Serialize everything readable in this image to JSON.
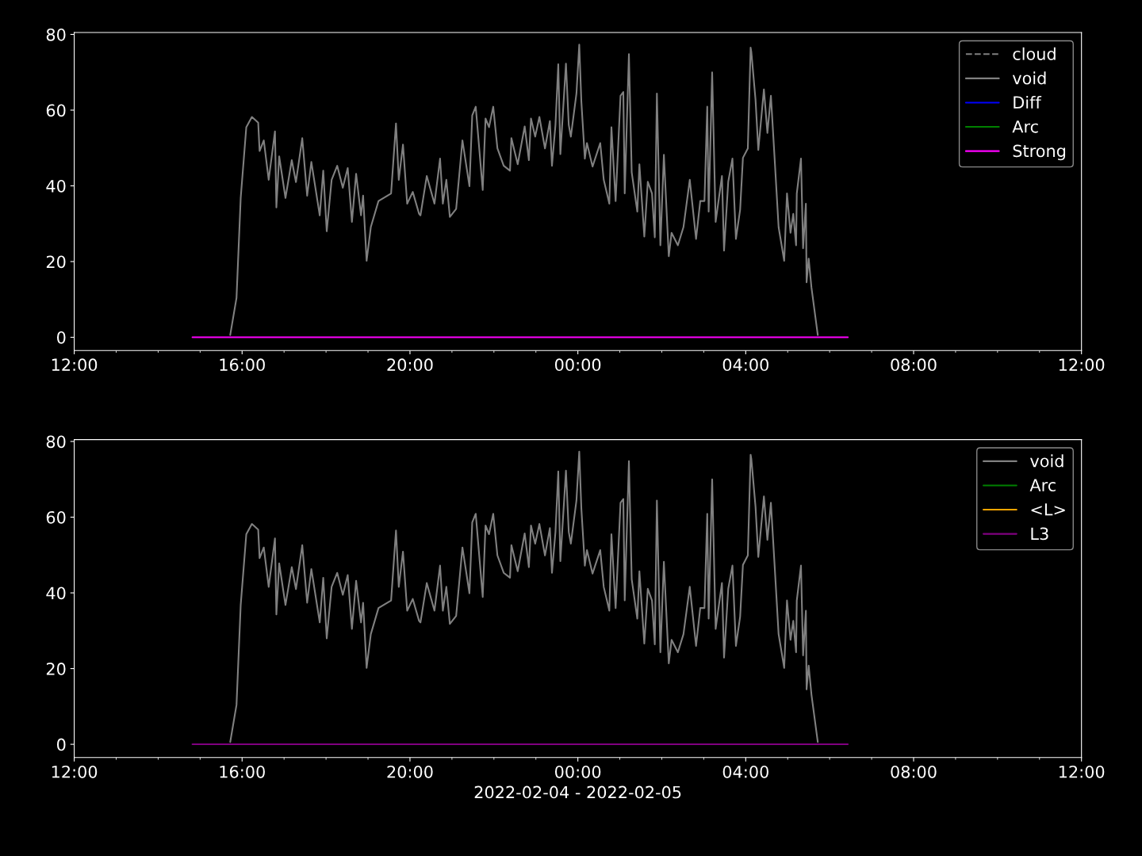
{
  "chart_data": [
    {
      "type": "line",
      "xlim": [
        "2022-02-04T12:00",
        "2022-02-05T12:00"
      ],
      "xticks": [
        {
          "value": "2022-02-04T12:00",
          "label": "12:00"
        },
        {
          "value": "2022-02-04T16:00",
          "label": "16:00"
        },
        {
          "value": "2022-02-04T20:00",
          "label": "20:00"
        },
        {
          "value": "2022-02-05T00:00",
          "label": "00:00"
        },
        {
          "value": "2022-02-05T04:00",
          "label": "04:00"
        },
        {
          "value": "2022-02-05T08:00",
          "label": "08:00"
        },
        {
          "value": "2022-02-05T12:00",
          "label": "12:00"
        }
      ],
      "ylim": [
        -3.5,
        80.5
      ],
      "yticks": [
        0,
        20,
        40,
        60,
        80
      ],
      "grid": false,
      "legend": "top right",
      "series": [
        {
          "name": "cloud",
          "color": "#808080",
          "line_style": "dashed"
        },
        {
          "name": "void",
          "color": "#808080",
          "line_style": "solid",
          "x": [
            "2022-02-04T15:43",
            "2022-02-04T15:52",
            "2022-02-04T15:58",
            "2022-02-04T16:06",
            "2022-02-04T16:14",
            "2022-02-04T16:23",
            "2022-02-04T16:25",
            "2022-02-04T16:31",
            "2022-02-04T16:38",
            "2022-02-04T16:47",
            "2022-02-04T16:49",
            "2022-02-04T16:53",
            "2022-02-04T17:02",
            "2022-02-04T17:11",
            "2022-02-04T17:17",
            "2022-02-04T17:26",
            "2022-02-04T17:33",
            "2022-02-04T17:39",
            "2022-02-04T17:51",
            "2022-02-04T17:56",
            "2022-02-04T18:01",
            "2022-02-04T18:08",
            "2022-02-04T18:16",
            "2022-02-04T18:24",
            "2022-02-04T18:31",
            "2022-02-04T18:37",
            "2022-02-04T18:43",
            "2022-02-04T18:50",
            "2022-02-04T18:53",
            "2022-02-04T18:58",
            "2022-02-04T19:04",
            "2022-02-04T19:15",
            "2022-02-04T19:33",
            "2022-02-04T19:40",
            "2022-02-04T19:44",
            "2022-02-04T19:50",
            "2022-02-04T19:56",
            "2022-02-04T20:04",
            "2022-02-04T20:13",
            "2022-02-04T20:15",
            "2022-02-04T20:24",
            "2022-02-04T20:35",
            "2022-02-04T20:43",
            "2022-02-04T20:47",
            "2022-02-04T20:52",
            "2022-02-04T20:57",
            "2022-02-04T21:06",
            "2022-02-04T21:15",
            "2022-02-04T21:25",
            "2022-02-04T21:29",
            "2022-02-04T21:34",
            "2022-02-04T21:44",
            "2022-02-04T21:48",
            "2022-02-04T21:53",
            "2022-02-04T21:59",
            "2022-02-04T22:05",
            "2022-02-04T22:14",
            "2022-02-04T22:23",
            "2022-02-04T22:25",
            "2022-02-04T22:34",
            "2022-02-04T22:44",
            "2022-02-04T22:50",
            "2022-02-04T22:53",
            "2022-02-04T22:59",
            "2022-02-04T23:05",
            "2022-02-04T23:13",
            "2022-02-04T23:20",
            "2022-02-04T23:23",
            "2022-02-04T23:28",
            "2022-02-04T23:32",
            "2022-02-04T23:35",
            "2022-02-04T23:43",
            "2022-02-04T23:47",
            "2022-02-04T23:50",
            "2022-02-04T23:58",
            "2022-02-05T00:02",
            "2022-02-05T00:05",
            "2022-02-05T00:10",
            "2022-02-05T00:13",
            "2022-02-05T00:21",
            "2022-02-05T00:32",
            "2022-02-05T00:37",
            "2022-02-05T00:45",
            "2022-02-05T00:48",
            "2022-02-05T00:54",
            "2022-02-05T01:01",
            "2022-02-05T01:05",
            "2022-02-05T01:07",
            "2022-02-05T01:13",
            "2022-02-05T01:17",
            "2022-02-05T01:25",
            "2022-02-05T01:28",
            "2022-02-05T01:35",
            "2022-02-05T01:40",
            "2022-02-05T01:46",
            "2022-02-05T01:50",
            "2022-02-05T01:53",
            "2022-02-05T01:58",
            "2022-02-05T02:03",
            "2022-02-05T02:10",
            "2022-02-05T02:14",
            "2022-02-05T02:23",
            "2022-02-05T02:31",
            "2022-02-05T02:40",
            "2022-02-05T02:49",
            "2022-02-05T02:55",
            "2022-02-05T03:01",
            "2022-02-05T03:05",
            "2022-02-05T03:07",
            "2022-02-05T03:12",
            "2022-02-05T03:17",
            "2022-02-05T03:26",
            "2022-02-05T03:29",
            "2022-02-05T03:35",
            "2022-02-05T03:41",
            "2022-02-05T03:46",
            "2022-02-05T03:52",
            "2022-02-05T03:56",
            "2022-02-05T04:03",
            "2022-02-05T04:07",
            "2022-02-05T04:08",
            "2022-02-05T04:14",
            "2022-02-05T04:18",
            "2022-02-05T04:26",
            "2022-02-05T04:31",
            "2022-02-05T04:36",
            "2022-02-05T04:41",
            "2022-02-05T04:47",
            "2022-02-05T04:55",
            "2022-02-05T04:59",
            "2022-02-05T05:04",
            "2022-02-05T05:08",
            "2022-02-05T05:12",
            "2022-02-05T05:13",
            "2022-02-05T05:19",
            "2022-02-05T05:22",
            "2022-02-05T05:26",
            "2022-02-05T05:27",
            "2022-02-05T05:30",
            "2022-02-05T05:34",
            "2022-02-05T05:43"
          ],
          "values": [
            0.6,
            10.4,
            36.8,
            55.5,
            58.2,
            56.7,
            49.2,
            52,
            41.6,
            54.4,
            34.3,
            47.8,
            36.8,
            46.8,
            41,
            52.6,
            37.4,
            46.3,
            32.2,
            44,
            28,
            41.6,
            45.3,
            39.5,
            44.7,
            30.5,
            43.2,
            32.2,
            37.4,
            20.2,
            29.1,
            36,
            38,
            56.5,
            41.6,
            50.9,
            35.3,
            38.4,
            32.6,
            32.2,
            42.6,
            35.3,
            47.2,
            35.3,
            41.6,
            31.8,
            33.9,
            52,
            39.9,
            58.6,
            60.9,
            38.9,
            57.8,
            55.5,
            60.9,
            49.9,
            45.3,
            44,
            52.6,
            45.7,
            55.7,
            46.8,
            57.8,
            53,
            58.2,
            49.9,
            57.1,
            45.3,
            56.1,
            72.1,
            48.4,
            72.3,
            56.1,
            53,
            64.4,
            77.3,
            62.3,
            47.2,
            51.3,
            45.1,
            51.3,
            41.6,
            35.3,
            55.5,
            36,
            63.8,
            64.8,
            38,
            74.8,
            43.6,
            33.2,
            45.7,
            26.6,
            41.1,
            38,
            26.4,
            64.4,
            24.3,
            48.2,
            21.4,
            27.6,
            24.3,
            29.1,
            41.6,
            26,
            36,
            36,
            60.9,
            33.2,
            70,
            30.5,
            42.6,
            22.9,
            41.1,
            47.2,
            26,
            33.7,
            47.4,
            49.9,
            76.5,
            75.4,
            62.8,
            49.5,
            65.5,
            54,
            63.8,
            48.2,
            29.1,
            20.2,
            38,
            27.6,
            32.6,
            24.3,
            38,
            47.2,
            23.5,
            35.3,
            14.5,
            20.8,
            13.1,
            0.6
          ]
        },
        {
          "name": "Diff",
          "color": "#0000ff",
          "line_style": "solid"
        },
        {
          "name": "Arc",
          "color": "#008000",
          "line_style": "solid"
        },
        {
          "name": "Strong",
          "color": "#ff00ff",
          "line_style": "solid",
          "x": [
            "2022-02-04T14:49",
            "2022-02-05T06:26"
          ],
          "values": [
            0,
            0
          ]
        }
      ]
    },
    {
      "type": "line",
      "xlabel": "2022-02-04 - 2022-02-05",
      "xlim": [
        "2022-02-04T12:00",
        "2022-02-05T12:00"
      ],
      "xticks": [
        {
          "value": "2022-02-04T12:00",
          "label": "12:00"
        },
        {
          "value": "2022-02-04T16:00",
          "label": "16:00"
        },
        {
          "value": "2022-02-04T20:00",
          "label": "20:00"
        },
        {
          "value": "2022-02-05T00:00",
          "label": "00:00"
        },
        {
          "value": "2022-02-05T04:00",
          "label": "04:00"
        },
        {
          "value": "2022-02-05T08:00",
          "label": "08:00"
        },
        {
          "value": "2022-02-05T12:00",
          "label": "12:00"
        }
      ],
      "ylim": [
        -3.5,
        80.5
      ],
      "yticks": [
        0,
        20,
        40,
        60,
        80
      ],
      "grid": false,
      "legend": "top right",
      "series": [
        {
          "name": "void",
          "color": "#808080",
          "line_style": "solid",
          "x": [
            "2022-02-04T15:43",
            "2022-02-04T15:52",
            "2022-02-04T15:58",
            "2022-02-04T16:06",
            "2022-02-04T16:14",
            "2022-02-04T16:23",
            "2022-02-04T16:25",
            "2022-02-04T16:31",
            "2022-02-04T16:38",
            "2022-02-04T16:47",
            "2022-02-04T16:49",
            "2022-02-04T16:53",
            "2022-02-04T17:02",
            "2022-02-04T17:11",
            "2022-02-04T17:17",
            "2022-02-04T17:26",
            "2022-02-04T17:33",
            "2022-02-04T17:39",
            "2022-02-04T17:51",
            "2022-02-04T17:56",
            "2022-02-04T18:01",
            "2022-02-04T18:08",
            "2022-02-04T18:16",
            "2022-02-04T18:24",
            "2022-02-04T18:31",
            "2022-02-04T18:37",
            "2022-02-04T18:43",
            "2022-02-04T18:50",
            "2022-02-04T18:53",
            "2022-02-04T18:58",
            "2022-02-04T19:04",
            "2022-02-04T19:15",
            "2022-02-04T19:33",
            "2022-02-04T19:40",
            "2022-02-04T19:44",
            "2022-02-04T19:50",
            "2022-02-04T19:56",
            "2022-02-04T20:04",
            "2022-02-04T20:13",
            "2022-02-04T20:15",
            "2022-02-04T20:24",
            "2022-02-04T20:35",
            "2022-02-04T20:43",
            "2022-02-04T20:47",
            "2022-02-04T20:52",
            "2022-02-04T20:57",
            "2022-02-04T21:06",
            "2022-02-04T21:15",
            "2022-02-04T21:25",
            "2022-02-04T21:29",
            "2022-02-04T21:34",
            "2022-02-04T21:44",
            "2022-02-04T21:48",
            "2022-02-04T21:53",
            "2022-02-04T21:59",
            "2022-02-04T22:05",
            "2022-02-04T22:14",
            "2022-02-04T22:23",
            "2022-02-04T22:25",
            "2022-02-04T22:34",
            "2022-02-04T22:44",
            "2022-02-04T22:50",
            "2022-02-04T22:53",
            "2022-02-04T22:59",
            "2022-02-04T23:05",
            "2022-02-04T23:13",
            "2022-02-04T23:20",
            "2022-02-04T23:23",
            "2022-02-04T23:28",
            "2022-02-04T23:32",
            "2022-02-04T23:35",
            "2022-02-04T23:43",
            "2022-02-04T23:47",
            "2022-02-04T23:50",
            "2022-02-04T23:58",
            "2022-02-05T00:02",
            "2022-02-05T00:05",
            "2022-02-05T00:10",
            "2022-02-05T00:13",
            "2022-02-05T00:21",
            "2022-02-05T00:32",
            "2022-02-05T00:37",
            "2022-02-05T00:45",
            "2022-02-05T00:48",
            "2022-02-05T00:54",
            "2022-02-05T01:01",
            "2022-02-05T01:05",
            "2022-02-05T01:07",
            "2022-02-05T01:13",
            "2022-02-05T01:17",
            "2022-02-05T01:25",
            "2022-02-05T01:28",
            "2022-02-05T01:35",
            "2022-02-05T01:40",
            "2022-02-05T01:46",
            "2022-02-05T01:50",
            "2022-02-05T01:53",
            "2022-02-05T01:58",
            "2022-02-05T02:03",
            "2022-02-05T02:10",
            "2022-02-05T02:14",
            "2022-02-05T02:23",
            "2022-02-05T02:31",
            "2022-02-05T02:40",
            "2022-02-05T02:49",
            "2022-02-05T02:55",
            "2022-02-05T03:01",
            "2022-02-05T03:05",
            "2022-02-05T03:07",
            "2022-02-05T03:12",
            "2022-02-05T03:17",
            "2022-02-05T03:26",
            "2022-02-05T03:29",
            "2022-02-05T03:35",
            "2022-02-05T03:41",
            "2022-02-05T03:46",
            "2022-02-05T03:52",
            "2022-02-05T03:56",
            "2022-02-05T04:03",
            "2022-02-05T04:07",
            "2022-02-05T04:08",
            "2022-02-05T04:14",
            "2022-02-05T04:18",
            "2022-02-05T04:26",
            "2022-02-05T04:31",
            "2022-02-05T04:36",
            "2022-02-05T04:41",
            "2022-02-05T04:47",
            "2022-02-05T04:55",
            "2022-02-05T04:59",
            "2022-02-05T05:04",
            "2022-02-05T05:08",
            "2022-02-05T05:12",
            "2022-02-05T05:13",
            "2022-02-05T05:19",
            "2022-02-05T05:22",
            "2022-02-05T05:26",
            "2022-02-05T05:27",
            "2022-02-05T05:30",
            "2022-02-05T05:34",
            "2022-02-05T05:43"
          ],
          "values": [
            0.6,
            10.4,
            36.8,
            55.5,
            58.2,
            56.7,
            49.2,
            52,
            41.6,
            54.4,
            34.3,
            47.8,
            36.8,
            46.8,
            41,
            52.6,
            37.4,
            46.3,
            32.2,
            44,
            28,
            41.6,
            45.3,
            39.5,
            44.7,
            30.5,
            43.2,
            32.2,
            37.4,
            20.2,
            29.1,
            36,
            38,
            56.5,
            41.6,
            50.9,
            35.3,
            38.4,
            32.6,
            32.2,
            42.6,
            35.3,
            47.2,
            35.3,
            41.6,
            31.8,
            33.9,
            52,
            39.9,
            58.6,
            60.9,
            38.9,
            57.8,
            55.5,
            60.9,
            49.9,
            45.3,
            44,
            52.6,
            45.7,
            55.7,
            46.8,
            57.8,
            53,
            58.2,
            49.9,
            57.1,
            45.3,
            56.1,
            72.1,
            48.4,
            72.3,
            56.1,
            53,
            64.4,
            77.3,
            62.3,
            47.2,
            51.3,
            45.1,
            51.3,
            41.6,
            35.3,
            55.5,
            36,
            63.8,
            64.8,
            38,
            74.8,
            43.6,
            33.2,
            45.7,
            26.6,
            41.1,
            38,
            26.4,
            64.4,
            24.3,
            48.2,
            21.4,
            27.6,
            24.3,
            29.1,
            41.6,
            26,
            36,
            36,
            60.9,
            33.2,
            70,
            30.5,
            42.6,
            22.9,
            41.1,
            47.2,
            26,
            33.7,
            47.4,
            49.9,
            76.5,
            75.4,
            62.8,
            49.5,
            65.5,
            54,
            63.8,
            48.2,
            29.1,
            20.2,
            38,
            27.6,
            32.6,
            24.3,
            38,
            47.2,
            23.5,
            35.3,
            14.5,
            20.8,
            13.1,
            0.6
          ]
        },
        {
          "name": "Arc",
          "color": "#008000",
          "line_style": "solid"
        },
        {
          "name": "<L>",
          "color": "#ffa500",
          "line_style": "solid"
        },
        {
          "name": "L3",
          "color": "#800080",
          "line_style": "solid",
          "x": [
            "2022-02-04T14:49",
            "2022-02-05T06:26"
          ],
          "values": [
            0,
            0
          ]
        }
      ]
    }
  ]
}
